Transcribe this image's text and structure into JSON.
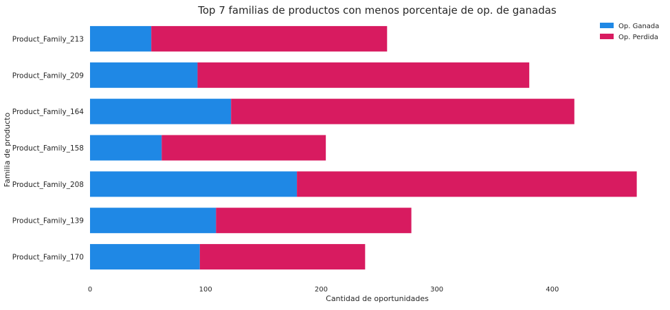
{
  "chart_data": {
    "type": "bar",
    "orientation": "horizontal",
    "stacked": true,
    "title": "Top 7 familias de productos con menos porcentaje de op. de ganadas",
    "xlabel": "Cantidad de oportunidades",
    "ylabel": "Familia de producto",
    "xlim": [
      0,
      475
    ],
    "xticks": [
      0,
      100,
      200,
      300,
      400
    ],
    "grid": false,
    "legend_position": "top-right",
    "categories": [
      "Product_Family_213",
      "Product_Family_209",
      "Product_Family_164",
      "Product_Family_158",
      "Product_Family_208",
      "Product_Family_139",
      "Product_Family_170"
    ],
    "series": [
      {
        "name": "Op. Ganada",
        "color": "#1f88e5",
        "values": [
          53,
          93,
          122,
          62,
          179,
          109,
          95
        ]
      },
      {
        "name": "Op. Perdida",
        "color": "#d81b60",
        "values": [
          204,
          287,
          297,
          142,
          294,
          169,
          143
        ]
      }
    ]
  }
}
